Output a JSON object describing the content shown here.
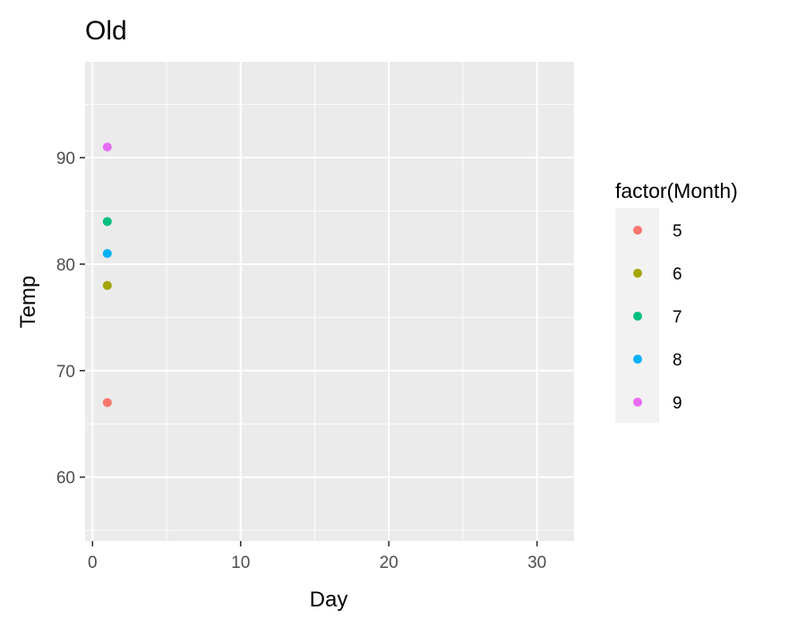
{
  "chart_data": {
    "type": "scatter",
    "title": "Old",
    "xlabel": "Day",
    "ylabel": "Temp",
    "xlim": [
      -0.5,
      32.5
    ],
    "ylim": [
      54,
      99
    ],
    "xticks": [
      0,
      10,
      20,
      30
    ],
    "xtick_labels": [
      "0",
      "10",
      "20",
      "30"
    ],
    "yticks": [
      60,
      70,
      80,
      90
    ],
    "ytick_labels": [
      "60",
      "70",
      "80",
      "90"
    ],
    "grid": true,
    "legend": {
      "title": "factor(Month)",
      "position": "right",
      "entries": [
        "5",
        "6",
        "7",
        "8",
        "9"
      ]
    },
    "series": [
      {
        "name": "5",
        "color": "#F8766D",
        "points": [
          {
            "x": 1,
            "y": 67
          }
        ]
      },
      {
        "name": "6",
        "color": "#A3A500",
        "points": [
          {
            "x": 1,
            "y": 78
          }
        ]
      },
      {
        "name": "7",
        "color": "#00BF7D",
        "points": [
          {
            "x": 1,
            "y": 84
          }
        ]
      },
      {
        "name": "8",
        "color": "#00B0F6",
        "points": [
          {
            "x": 1,
            "y": 81
          }
        ]
      },
      {
        "name": "9",
        "color": "#E76BF3",
        "points": [
          {
            "x": 1,
            "y": 91
          }
        ]
      }
    ],
    "panel_color": "#EBEBEB",
    "grid_color": "#FFFFFF"
  }
}
